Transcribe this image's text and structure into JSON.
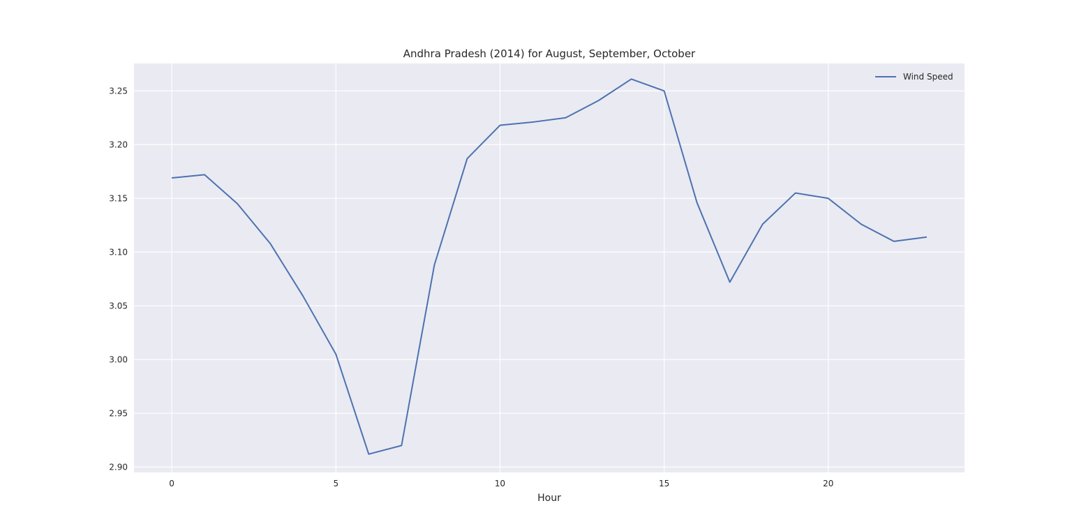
{
  "chart_data": {
    "type": "line",
    "title": "Andhra Pradesh (2014) for August, September, October",
    "xlabel": "Hour",
    "ylabel": "",
    "x": [
      0,
      1,
      2,
      3,
      4,
      5,
      6,
      7,
      8,
      9,
      10,
      11,
      12,
      13,
      14,
      15,
      16,
      17,
      18,
      19,
      20,
      21,
      22,
      23
    ],
    "series": [
      {
        "name": "Wind Speed",
        "color": "#4c72b0",
        "values": [
          3.169,
          3.172,
          3.145,
          3.108,
          3.059,
          3.005,
          2.912,
          2.92,
          3.088,
          3.187,
          3.218,
          3.221,
          3.225,
          3.241,
          3.261,
          3.25,
          3.146,
          3.072,
          3.126,
          3.155,
          3.15,
          3.126,
          3.11,
          3.114
        ]
      }
    ],
    "xlim": [
      -1.15,
      24.15
    ],
    "ylim": [
      2.895,
      3.2755
    ],
    "xticks": [
      0,
      5,
      10,
      15,
      20
    ],
    "xtick_labels": [
      "0",
      "5",
      "10",
      "15",
      "20"
    ],
    "yticks": [
      2.9,
      2.95,
      3.0,
      3.05,
      3.1,
      3.15,
      3.2,
      3.25
    ],
    "ytick_labels": [
      "2.90",
      "2.95",
      "3.00",
      "3.05",
      "3.10",
      "3.15",
      "3.20",
      "3.25"
    ],
    "grid": true,
    "legend_position": "top-right",
    "background_color": "#eaeaf2",
    "grid_color": "#ffffff"
  }
}
